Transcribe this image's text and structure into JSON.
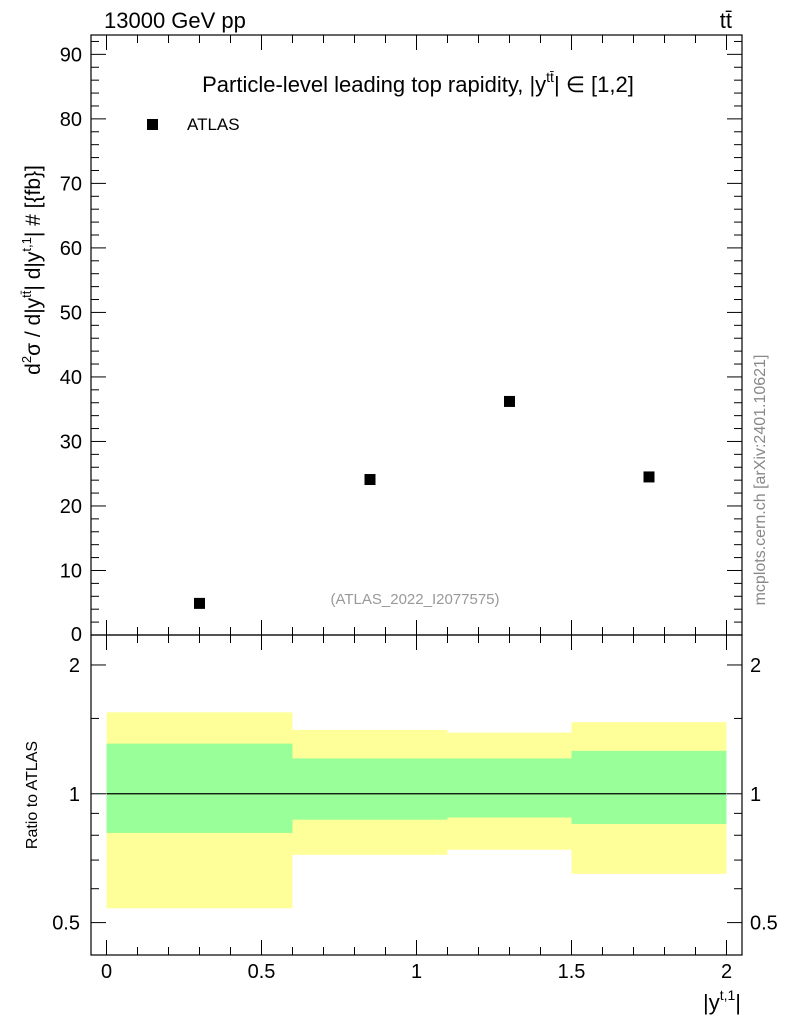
{
  "header": {
    "left": "13000 GeV pp",
    "right": "tt̄"
  },
  "watermark": "mcplots.cern.ch [arXiv:2401.10621]",
  "chart_data": [
    {
      "type": "scatter",
      "title": "Particle-level leading top rapidity, |y^{tt̄}| ∈ [1,2]",
      "title_parts": {
        "main": "Particle-level leading top rapidity, |",
        "var": "y",
        "sup": "tt̄",
        "range": "| ∈ [1,2]"
      },
      "ylabel": "d²σ / d|y^{tt̄}| d|y^{t,1}| # [{fb}]",
      "ylabel_parts": {
        "a": "d",
        "a_sup": "2",
        "b": "σ / d|y",
        "b_sup": "tt̄",
        "c": "| d|y",
        "c_sup": "t,1",
        "d": "| # [{fb}]"
      },
      "xlim": [
        -0.05,
        2.05
      ],
      "ylim": [
        0,
        93
      ],
      "y_ticks": [
        10,
        20,
        30,
        40,
        50,
        60,
        70,
        80,
        90
      ],
      "y_tick_partial": "0",
      "legend": {
        "label": "ATLAS",
        "placement": "top-left"
      },
      "series": [
        {
          "name": "ATLAS",
          "x": [
            0.3,
            0.85,
            1.3,
            1.75
          ],
          "y": [
            4.9,
            24.1,
            36.2,
            24.5
          ]
        }
      ],
      "annotation": "(ATLAS_2022_I2077575)"
    },
    {
      "type": "area",
      "ylabel": "Ratio to ATLAS",
      "xlabel": "|y^{t,1}|",
      "xlabel_parts": {
        "main": "|y",
        "sup": "t,1",
        "end": "|"
      },
      "xlim": [
        -0.05,
        2.05
      ],
      "ylim": [
        0.42,
        2.35
      ],
      "y_ticks": [
        {
          "value": 0.5,
          "label": "0.5"
        },
        {
          "value": 1,
          "label": "1"
        },
        {
          "value": 2,
          "label": "2"
        }
      ],
      "x_ticks": [
        {
          "value": 0,
          "label": "0"
        },
        {
          "value": 0.5,
          "label": "0.5"
        },
        {
          "value": 1,
          "label": "1"
        },
        {
          "value": 1.5,
          "label": "1.5"
        },
        {
          "value": 2,
          "label": "2"
        }
      ],
      "reference_line": 1,
      "bins": [
        {
          "x0": 0,
          "x1": 0.6,
          "outer": [
            0.54,
            1.55
          ],
          "inner": [
            0.81,
            1.31
          ]
        },
        {
          "x0": 0.6,
          "x1": 1.1,
          "outer": [
            0.72,
            1.41
          ],
          "inner": [
            0.87,
            1.21
          ]
        },
        {
          "x0": 1.1,
          "x1": 1.5,
          "outer": [
            0.74,
            1.39
          ],
          "inner": [
            0.88,
            1.21
          ]
        },
        {
          "x0": 1.5,
          "x1": 2.0,
          "outer": [
            0.65,
            1.47
          ],
          "inner": [
            0.85,
            1.26
          ]
        }
      ],
      "colors": {
        "outer": "#ffff99",
        "inner": "#99ff99"
      }
    }
  ]
}
